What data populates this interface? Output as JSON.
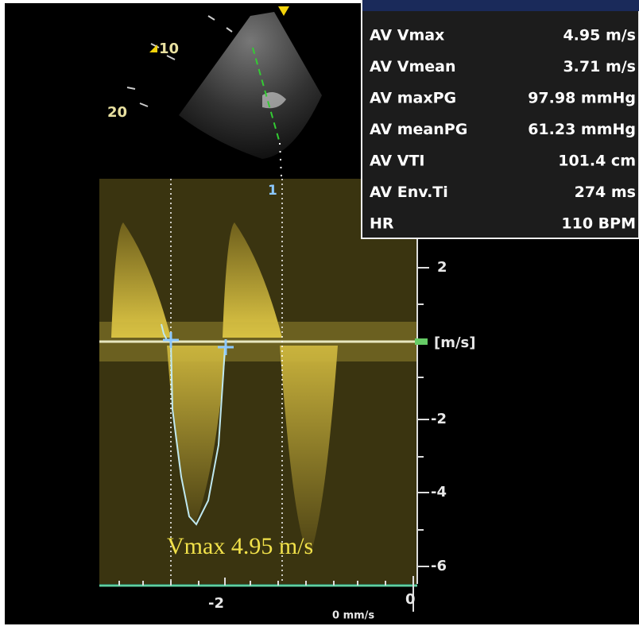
{
  "sector": {
    "depth_labels": [
      "10",
      "20"
    ],
    "cursor_label": "1"
  },
  "measurements": {
    "rows": [
      [
        "AV Vmax",
        "4.95 m/s"
      ],
      [
        "AV Vmean",
        "3.71 m/s"
      ],
      [
        "AV maxPG",
        "97.98 mmHg"
      ],
      [
        "AV meanPG",
        "61.23 mmHg"
      ],
      [
        "AV VTI",
        "101.4 cm"
      ],
      [
        "AV Env.Ti",
        "274 ms"
      ],
      [
        "HR",
        "110 BPM"
      ]
    ]
  },
  "doppler": {
    "velocity_ticks": [
      "2",
      "[m/s]",
      "-2",
      "-4",
      "-6"
    ],
    "time_ticks": [
      "-2",
      "0"
    ],
    "sweep_speed": "0 mm/s",
    "annotation": "Vmax 4.95 m/s"
  }
}
